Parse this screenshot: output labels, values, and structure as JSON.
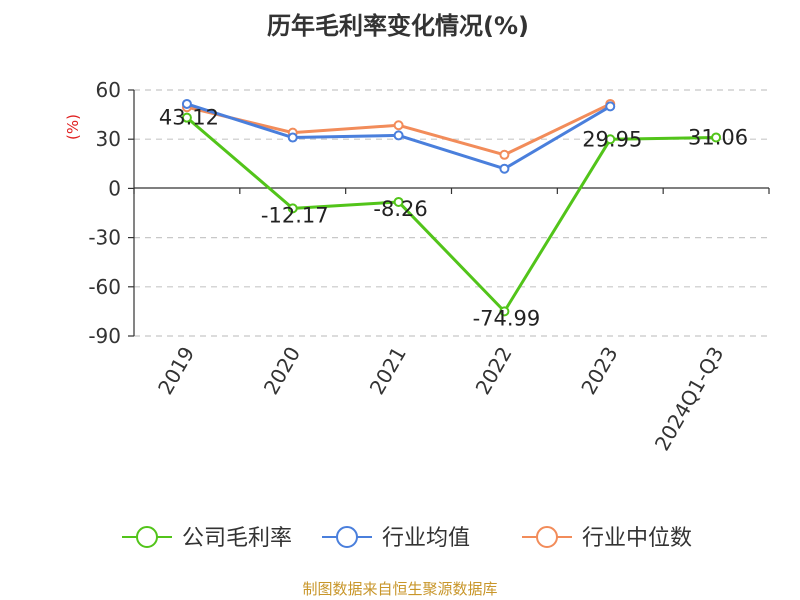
{
  "chart_data": {
    "type": "line",
    "title": "历年毛利率变化情况(%)",
    "ylabel": "(%)",
    "xlabel": "",
    "categories": [
      "2019",
      "2020",
      "2021",
      "2022",
      "2023",
      "2024Q1-Q3"
    ],
    "yticks": [
      "60",
      "30",
      "0",
      "-30",
      "-60",
      "-90"
    ],
    "ytick_values": [
      60,
      30,
      0,
      -30,
      -60,
      -90
    ],
    "ylim": [
      -90,
      60
    ],
    "grid": true,
    "legend_position": "bottom",
    "series": [
      {
        "name": "公司毛利率",
        "color": "#52c41a",
        "values": [
          43.12,
          -12.17,
          -8.26,
          -74.99,
          29.95,
          31.06
        ],
        "labels": [
          "43.12",
          "-12.17",
          "-8.26",
          "-74.99",
          "29.95",
          "31.06"
        ]
      },
      {
        "name": "行业均值",
        "color": "#4a7fdc",
        "values": [
          51.5,
          31.0,
          32.3,
          12.0,
          50.0,
          null
        ]
      },
      {
        "name": "行业中位数",
        "color": "#f28c5a",
        "values": [
          49.5,
          34.0,
          38.5,
          20.5,
          51.5,
          null
        ]
      }
    ]
  },
  "footer": {
    "source": "制图数据来自恒生聚源数据库"
  }
}
